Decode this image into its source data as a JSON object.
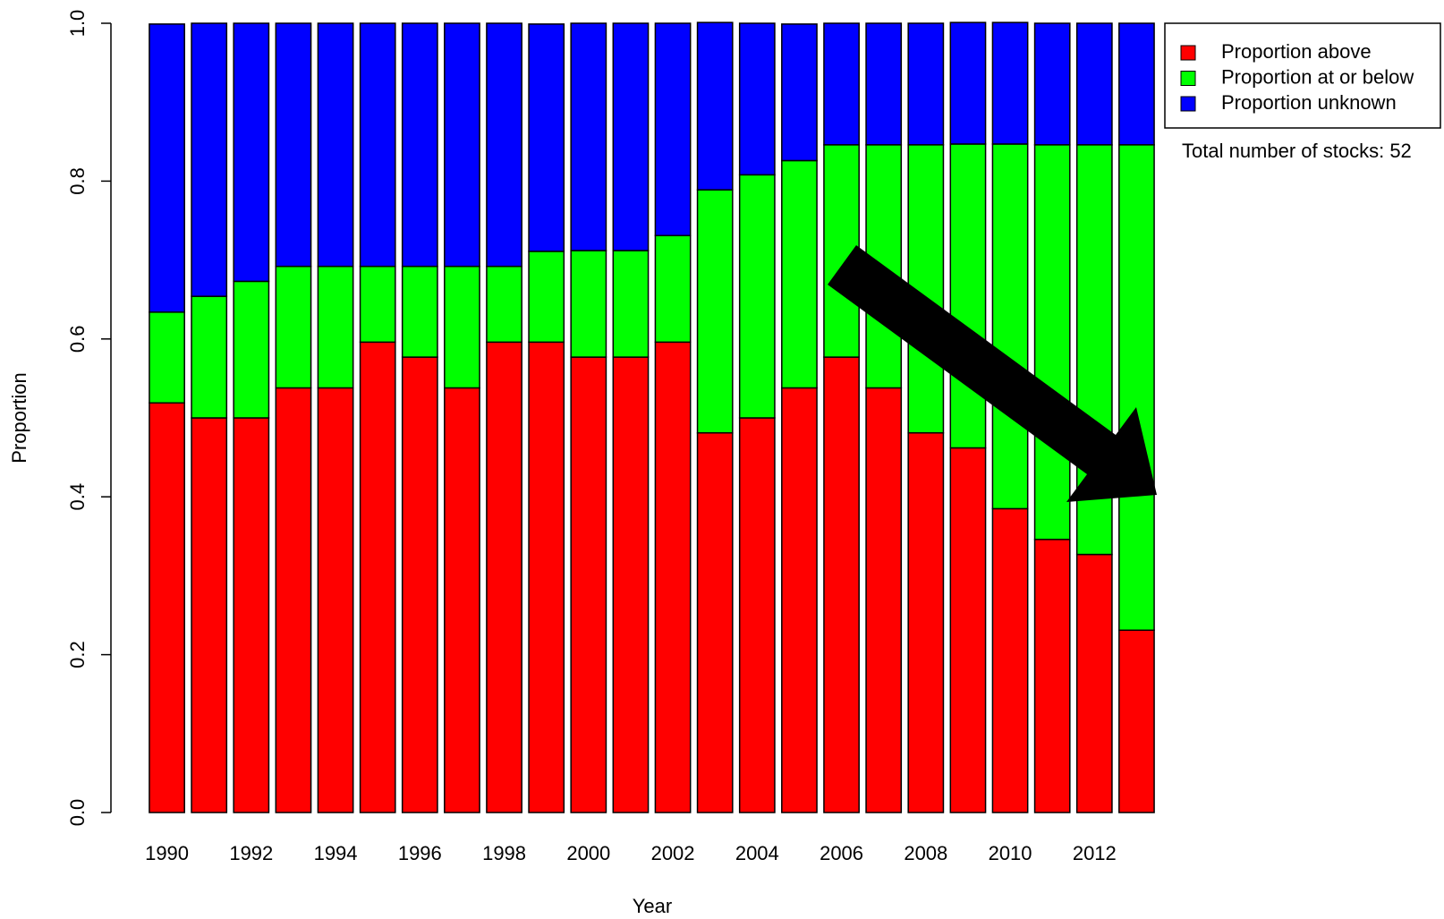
{
  "chart_data": {
    "type": "stacked_bar",
    "x_label": "Year",
    "y_label": "Proportion",
    "categories": [
      "1990",
      null,
      "1992",
      null,
      "1994",
      null,
      "1996",
      null,
      "1998",
      null,
      "2000",
      null,
      "2002",
      null,
      "2004",
      null,
      "2006",
      null,
      "2008",
      null,
      "2010",
      null,
      "2012",
      null
    ],
    "series": [
      {
        "name": "Proportion above",
        "color": "#ff0000",
        "values": [
          0.519,
          0.5,
          0.5,
          0.538,
          0.538,
          0.596,
          0.577,
          0.538,
          0.596,
          0.596,
          0.577,
          0.577,
          0.596,
          0.481,
          0.5,
          0.538,
          0.577,
          0.538,
          0.481,
          0.462,
          0.385,
          0.346,
          0.327,
          0.231
        ]
      },
      {
        "name": "Proportion at or below",
        "color": "#00ff00",
        "values": [
          0.115,
          0.154,
          0.173,
          0.154,
          0.154,
          0.096,
          0.115,
          0.154,
          0.096,
          0.115,
          0.135,
          0.135,
          0.135,
          0.308,
          0.308,
          0.288,
          0.269,
          0.308,
          0.365,
          0.385,
          0.462,
          0.5,
          0.519,
          0.615
        ]
      },
      {
        "name": "Proportion unknown",
        "color": "#0000ff",
        "values": [
          0.365,
          0.346,
          0.327,
          0.308,
          0.308,
          0.308,
          0.308,
          0.308,
          0.308,
          0.288,
          0.288,
          0.288,
          0.269,
          0.212,
          0.192,
          0.173,
          0.154,
          0.154,
          0.154,
          0.154,
          0.154,
          0.154,
          0.154,
          0.154
        ]
      }
    ],
    "ylim": [
      0,
      1
    ],
    "yticks": [
      {
        "value": 0,
        "label": "0.0"
      },
      0.2,
      0.4,
      0.6,
      0.8,
      {
        "value": 1,
        "label": "1.0"
      }
    ],
    "legend": "top-right",
    "annotation": "Total number of stocks: 52"
  }
}
